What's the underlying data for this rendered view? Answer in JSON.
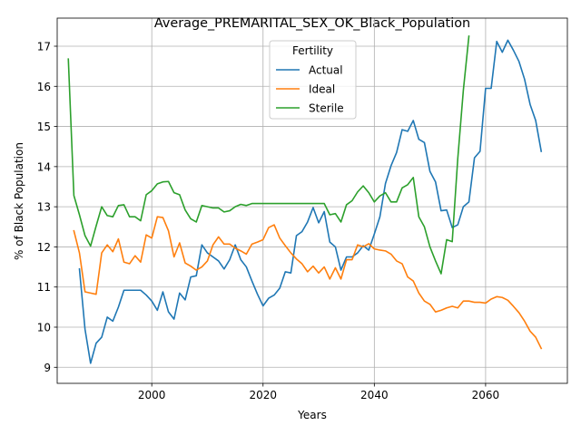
{
  "chart_data": {
    "type": "line",
    "title": "Average_PREMARITAL_SEX_OK_Black_Population",
    "xlabel": "Years",
    "ylabel": "% of Black Population",
    "xlim": [
      1983.0,
      2074.7
    ],
    "ylim": [
      8.6,
      17.7
    ],
    "xticks": [
      2000,
      2020,
      2040,
      2060
    ],
    "yticks": [
      9,
      10,
      11,
      12,
      13,
      14,
      15,
      16,
      17
    ],
    "grid": true,
    "legend": {
      "title": "Fertility",
      "placement": "upper center"
    },
    "series": [
      {
        "name": "Actual",
        "color": "#1f77b4",
        "points": [
          [
            1987,
            11.45
          ],
          [
            1988,
            9.95
          ],
          [
            1989,
            9.1
          ],
          [
            1990,
            9.6
          ],
          [
            1991,
            9.75
          ],
          [
            1992,
            10.25
          ],
          [
            1993,
            10.15
          ],
          [
            1994,
            10.5
          ],
          [
            1995,
            10.92
          ],
          [
            1996,
            10.92
          ],
          [
            1997,
            10.92
          ],
          [
            1998,
            10.92
          ],
          [
            1999,
            10.8
          ],
          [
            2000,
            10.65
          ],
          [
            2001,
            10.42
          ],
          [
            2002,
            10.88
          ],
          [
            2003,
            10.38
          ],
          [
            2004,
            10.2
          ],
          [
            2005,
            10.85
          ],
          [
            2006,
            10.68
          ],
          [
            2007,
            11.25
          ],
          [
            2008,
            11.28
          ],
          [
            2009,
            12.05
          ],
          [
            2010,
            11.85
          ],
          [
            2011,
            11.75
          ],
          [
            2012,
            11.65
          ],
          [
            2013,
            11.45
          ],
          [
            2014,
            11.68
          ],
          [
            2015,
            12.05
          ],
          [
            2016,
            11.68
          ],
          [
            2017,
            11.5
          ],
          [
            2018,
            11.15
          ],
          [
            2019,
            10.82
          ],
          [
            2020,
            10.53
          ],
          [
            2021,
            10.72
          ],
          [
            2022,
            10.8
          ],
          [
            2023,
            10.97
          ],
          [
            2024,
            11.38
          ],
          [
            2025,
            11.35
          ],
          [
            2026,
            12.28
          ],
          [
            2027,
            12.38
          ],
          [
            2028,
            12.62
          ],
          [
            2029,
            12.98
          ],
          [
            2030,
            12.6
          ],
          [
            2031,
            12.88
          ],
          [
            2032,
            12.12
          ],
          [
            2033,
            12.0
          ],
          [
            2034,
            11.42
          ],
          [
            2035,
            11.75
          ],
          [
            2036,
            11.75
          ],
          [
            2037,
            11.85
          ],
          [
            2038,
            12.03
          ],
          [
            2039,
            11.92
          ],
          [
            2040,
            12.32
          ],
          [
            2041,
            12.75
          ],
          [
            2042,
            13.58
          ],
          [
            2043,
            14.02
          ],
          [
            2044,
            14.35
          ],
          [
            2045,
            14.92
          ],
          [
            2046,
            14.88
          ],
          [
            2047,
            15.15
          ],
          [
            2048,
            14.68
          ],
          [
            2049,
            14.6
          ],
          [
            2050,
            13.88
          ],
          [
            2051,
            13.62
          ],
          [
            2052,
            12.9
          ],
          [
            2053,
            12.92
          ],
          [
            2054,
            12.48
          ],
          [
            2055,
            12.55
          ],
          [
            2056,
            13.0
          ],
          [
            2057,
            13.12
          ],
          [
            2058,
            14.22
          ],
          [
            2059,
            14.38
          ],
          [
            2060,
            15.95
          ],
          [
            2061,
            15.95
          ],
          [
            2062,
            17.12
          ],
          [
            2063,
            16.85
          ],
          [
            2064,
            17.15
          ],
          [
            2065,
            16.9
          ],
          [
            2066,
            16.62
          ],
          [
            2067,
            16.18
          ],
          [
            2068,
            15.55
          ],
          [
            2069,
            15.15
          ],
          [
            2070,
            14.38
          ]
        ]
      },
      {
        "name": "Ideal",
        "color": "#ff7f0e",
        "points": [
          [
            1986,
            12.4
          ],
          [
            1987,
            11.85
          ],
          [
            1988,
            10.88
          ],
          [
            1989,
            10.85
          ],
          [
            1990,
            10.82
          ],
          [
            1991,
            11.85
          ],
          [
            1992,
            12.05
          ],
          [
            1993,
            11.88
          ],
          [
            1994,
            12.2
          ],
          [
            1995,
            11.62
          ],
          [
            1996,
            11.58
          ],
          [
            1997,
            11.78
          ],
          [
            1998,
            11.62
          ],
          [
            1999,
            12.3
          ],
          [
            2000,
            12.22
          ],
          [
            2001,
            12.75
          ],
          [
            2002,
            12.73
          ],
          [
            2003,
            12.4
          ],
          [
            2004,
            11.75
          ],
          [
            2005,
            12.1
          ],
          [
            2006,
            11.6
          ],
          [
            2007,
            11.52
          ],
          [
            2008,
            11.42
          ],
          [
            2009,
            11.5
          ],
          [
            2010,
            11.65
          ],
          [
            2011,
            12.05
          ],
          [
            2012,
            12.25
          ],
          [
            2013,
            12.07
          ],
          [
            2014,
            12.07
          ],
          [
            2015,
            11.97
          ],
          [
            2016,
            11.9
          ],
          [
            2017,
            11.82
          ],
          [
            2018,
            12.07
          ],
          [
            2019,
            12.12
          ],
          [
            2020,
            12.18
          ],
          [
            2021,
            12.48
          ],
          [
            2022,
            12.55
          ],
          [
            2023,
            12.22
          ],
          [
            2024,
            12.03
          ],
          [
            2025,
            11.85
          ],
          [
            2026,
            11.7
          ],
          [
            2027,
            11.58
          ],
          [
            2028,
            11.38
          ],
          [
            2029,
            11.52
          ],
          [
            2030,
            11.35
          ],
          [
            2031,
            11.5
          ],
          [
            2032,
            11.2
          ],
          [
            2033,
            11.48
          ],
          [
            2034,
            11.2
          ],
          [
            2035,
            11.68
          ],
          [
            2036,
            11.68
          ],
          [
            2037,
            12.05
          ],
          [
            2038,
            12.0
          ],
          [
            2039,
            12.08
          ],
          [
            2040,
            11.95
          ],
          [
            2041,
            11.92
          ],
          [
            2042,
            11.9
          ],
          [
            2043,
            11.82
          ],
          [
            2044,
            11.65
          ],
          [
            2045,
            11.58
          ],
          [
            2046,
            11.25
          ],
          [
            2047,
            11.15
          ],
          [
            2048,
            10.85
          ],
          [
            2049,
            10.65
          ],
          [
            2050,
            10.57
          ],
          [
            2051,
            10.38
          ],
          [
            2052,
            10.42
          ],
          [
            2053,
            10.48
          ],
          [
            2054,
            10.52
          ],
          [
            2055,
            10.48
          ],
          [
            2056,
            10.65
          ],
          [
            2057,
            10.65
          ],
          [
            2058,
            10.62
          ],
          [
            2059,
            10.62
          ],
          [
            2060,
            10.6
          ],
          [
            2061,
            10.7
          ],
          [
            2062,
            10.76
          ],
          [
            2063,
            10.74
          ],
          [
            2064,
            10.67
          ],
          [
            2065,
            10.52
          ],
          [
            2066,
            10.36
          ],
          [
            2067,
            10.15
          ],
          [
            2068,
            9.9
          ],
          [
            2069,
            9.75
          ],
          [
            2070,
            9.47
          ]
        ]
      },
      {
        "name": "Sterile",
        "color": "#2ca02c",
        "points": [
          [
            1985,
            16.68
          ],
          [
            1986,
            13.28
          ],
          [
            1987,
            12.8
          ],
          [
            1988,
            12.28
          ],
          [
            1989,
            12.02
          ],
          [
            1990,
            12.52
          ],
          [
            1991,
            13.0
          ],
          [
            1992,
            12.78
          ],
          [
            1993,
            12.75
          ],
          [
            1994,
            13.03
          ],
          [
            1995,
            13.05
          ],
          [
            1996,
            12.75
          ],
          [
            1997,
            12.75
          ],
          [
            1998,
            12.65
          ],
          [
            1999,
            13.3
          ],
          [
            2000,
            13.4
          ],
          [
            2001,
            13.57
          ],
          [
            2002,
            13.62
          ],
          [
            2003,
            13.63
          ],
          [
            2004,
            13.35
          ],
          [
            2005,
            13.3
          ],
          [
            2006,
            12.92
          ],
          [
            2007,
            12.7
          ],
          [
            2008,
            12.62
          ],
          [
            2009,
            13.03
          ],
          [
            2010,
            13.0
          ],
          [
            2011,
            12.97
          ],
          [
            2012,
            12.97
          ],
          [
            2013,
            12.87
          ],
          [
            2014,
            12.9
          ],
          [
            2015,
            13.0
          ],
          [
            2016,
            13.06
          ],
          [
            2017,
            13.03
          ],
          [
            2018,
            13.08
          ],
          [
            2019,
            13.08
          ],
          [
            2020,
            13.08
          ],
          [
            2021,
            13.08
          ],
          [
            2022,
            13.08
          ],
          [
            2023,
            13.08
          ],
          [
            2024,
            13.08
          ],
          [
            2025,
            13.08
          ],
          [
            2026,
            13.08
          ],
          [
            2027,
            13.08
          ],
          [
            2028,
            13.08
          ],
          [
            2029,
            13.08
          ],
          [
            2030,
            13.08
          ],
          [
            2031,
            13.08
          ],
          [
            2032,
            12.8
          ],
          [
            2033,
            12.83
          ],
          [
            2034,
            12.62
          ],
          [
            2035,
            13.05
          ],
          [
            2036,
            13.15
          ],
          [
            2037,
            13.37
          ],
          [
            2038,
            13.52
          ],
          [
            2039,
            13.35
          ],
          [
            2040,
            13.12
          ],
          [
            2041,
            13.27
          ],
          [
            2042,
            13.35
          ],
          [
            2043,
            13.12
          ],
          [
            2044,
            13.12
          ],
          [
            2045,
            13.47
          ],
          [
            2046,
            13.55
          ],
          [
            2047,
            13.73
          ],
          [
            2048,
            12.75
          ],
          [
            2049,
            12.5
          ],
          [
            2050,
            12.0
          ],
          [
            2051,
            11.65
          ],
          [
            2052,
            11.33
          ],
          [
            2053,
            12.18
          ],
          [
            2054,
            12.13
          ],
          [
            2055,
            14.2
          ],
          [
            2056,
            15.9
          ],
          [
            2057,
            17.25
          ]
        ]
      }
    ]
  }
}
